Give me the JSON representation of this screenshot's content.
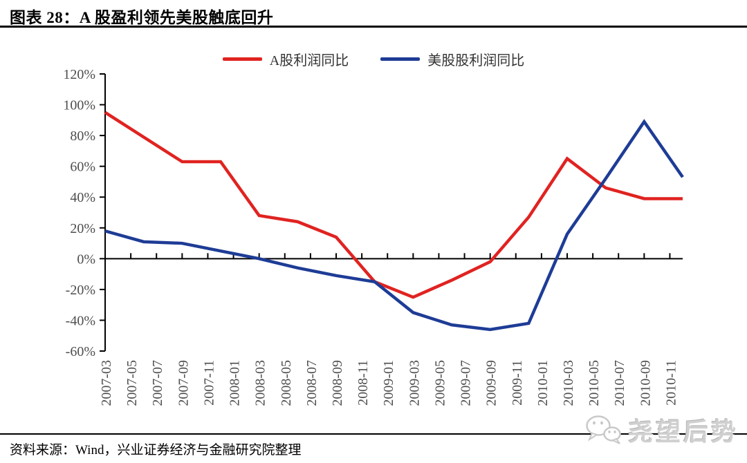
{
  "header": {
    "title": "图表 28：A 股盈利领先美股触底回升"
  },
  "footer": {
    "source": "资料来源：Wind，兴业证券经济与金融研究院整理"
  },
  "watermark": {
    "text": "尧望后势",
    "icon": "wechat-logo-icon",
    "color": "#d0d0d0"
  },
  "colors": {
    "axis": "#000000",
    "tick_label": "#4d4d4d",
    "red_series": "#e02321",
    "blue_series": "#1e3c96"
  },
  "chart_data": {
    "type": "line",
    "title": "图表 28：A 股盈利领先美股触底回升",
    "ylabel": "",
    "xlabel": "",
    "ylim": [
      -60,
      120
    ],
    "ytick_step": 20,
    "ytick_labels": [
      "120%",
      "100%",
      "80%",
      "60%",
      "40%",
      "20%",
      "0%",
      "-20%",
      "-40%",
      "-60%"
    ],
    "x_tick_labels": [
      "2007-03",
      "2007-05",
      "2007-07",
      "2007-09",
      "2007-11",
      "2008-01",
      "2008-03",
      "2008-05",
      "2008-07",
      "2008-09",
      "2008-11",
      "2009-01",
      "2009-03",
      "2009-05",
      "2009-07",
      "2009-09",
      "2009-11",
      "2010-01",
      "2010-03",
      "2010-05",
      "2010-07",
      "2010-09",
      "2010-11"
    ],
    "x_months_per_tick": 2,
    "x_total_months": 45,
    "grid": false,
    "legend_position": "top-center",
    "series": [
      {
        "name": "A股利润同比",
        "color": "#e02321",
        "quarters": [
          "2007-03",
          "2007-06",
          "2007-09",
          "2007-12",
          "2008-03",
          "2008-06",
          "2008-09",
          "2008-12",
          "2009-03",
          "2009-06",
          "2009-09",
          "2009-12",
          "2010-03",
          "2010-06",
          "2010-09",
          "2010-12"
        ],
        "x_months": [
          0,
          3,
          6,
          9,
          12,
          15,
          18,
          21,
          24,
          27,
          30,
          33,
          36,
          39,
          42,
          45
        ],
        "values_pct": [
          95,
          79,
          63,
          63,
          28,
          24,
          14,
          -15,
          -25,
          -14,
          -2,
          27,
          65,
          46,
          39,
          39
        ]
      },
      {
        "name": "美股股利润同比",
        "color": "#1e3c96",
        "quarters": [
          "2007-03",
          "2007-06",
          "2007-09",
          "2007-12",
          "2008-03",
          "2008-06",
          "2008-09",
          "2008-12",
          "2009-03",
          "2009-06",
          "2009-09",
          "2009-12",
          "2010-03",
          "2010-06",
          "2010-09",
          "2010-12"
        ],
        "x_months": [
          0,
          3,
          6,
          9,
          12,
          15,
          18,
          21,
          24,
          27,
          30,
          33,
          36,
          39,
          42,
          45
        ],
        "values_pct": [
          18,
          11,
          10,
          5,
          0,
          -6,
          -11,
          -15,
          -35,
          -43,
          -46,
          -42,
          16,
          52,
          89,
          53
        ]
      }
    ]
  }
}
